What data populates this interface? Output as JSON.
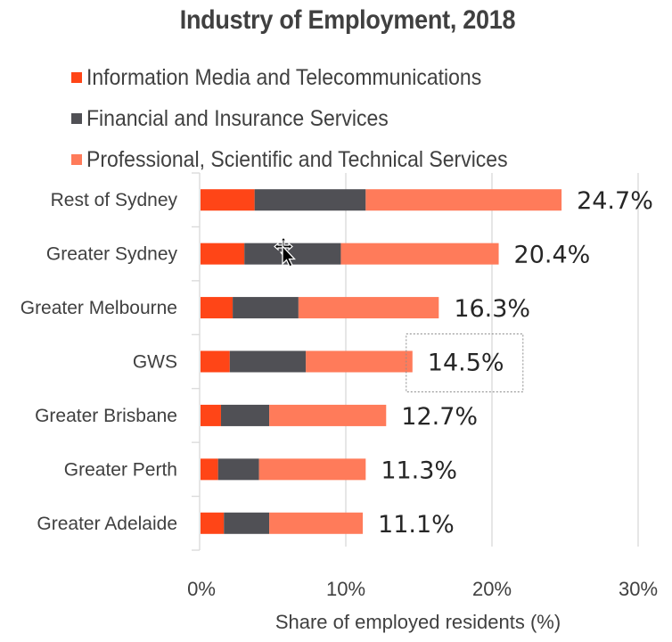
{
  "chart_data": {
    "type": "bar",
    "orientation": "horizontal",
    "stacked": true,
    "title": "Industry of Employment, 2018",
    "xlabel": "Share of employed residents (%)",
    "ylabel": "",
    "xlim": [
      0,
      30
    ],
    "xticks": [
      0,
      10,
      20,
      30
    ],
    "xtick_labels": [
      "0%",
      "10%",
      "20%",
      "30%"
    ],
    "grid": "vertical",
    "legend_position": "top",
    "categories": [
      "Rest of Sydney",
      "Greater Sydney",
      "Greater Melbourne",
      "GWS",
      "Greater Brisbane",
      "Greater Perth",
      "Greater Adelaide"
    ],
    "series": [
      {
        "name": "Information Media and Telecommunications",
        "color": "#FF4517",
        "values": [
          3.7,
          3.0,
          2.2,
          2.0,
          1.4,
          1.2,
          1.6
        ]
      },
      {
        "name": "Financial and Insurance Services",
        "color": "#505055",
        "values": [
          7.6,
          6.6,
          4.5,
          5.2,
          3.3,
          2.8,
          3.1
        ]
      },
      {
        "name": "Professional, Scientific and Technical Services",
        "color": "#FF7B5A",
        "values": [
          13.4,
          10.8,
          9.6,
          7.3,
          8.0,
          7.3,
          6.4
        ]
      }
    ],
    "totals": [
      24.7,
      20.4,
      16.3,
      14.5,
      12.7,
      11.3,
      11.1
    ],
    "total_labels": [
      "24.7%",
      "20.4%",
      "16.3%",
      "14.5%",
      "12.7%",
      "11.3%",
      "11.1%"
    ],
    "selected_label_index": 3
  },
  "cursor": {
    "icon": "move-cursor-icon"
  }
}
